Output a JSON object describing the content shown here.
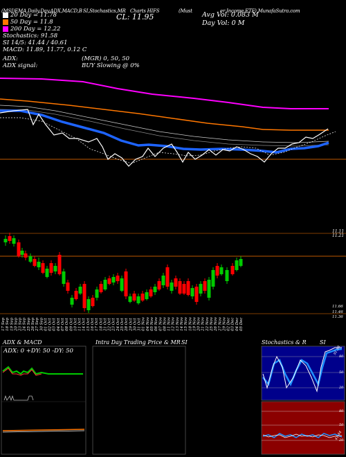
{
  "header": {
    "left": "(MSI)EMA,Daily,Day,ADX,MACD,B",
    "mid1": "SI,Stochastics,MR",
    "mid2": "Charts HIFS",
    "mid3": "(Must",
    "right": "er Income ETF) MunafaSutra.com",
    "cl_label": "CL: 11.95",
    "avg_vol": "Avg Vol: 0.083 M",
    "day_vol": "Day Vol: 0   M"
  },
  "legend": {
    "items": [
      {
        "label": "20  Day = 11.78",
        "color": "#ffffff"
      },
      {
        "label": "50  Day = 11.8",
        "color": "#ff7700"
      },
      {
        "label": "200  Day = 12.22",
        "color": "#ff00ff"
      }
    ],
    "stochastics": "Stochastics: 91.58",
    "si": "SI 14/5: 41.44 / 40.61",
    "macd": "MACD: 11.89, 11.77, 0.12  C"
  },
  "adx_block": {
    "adx_label": "ADX:",
    "adx_value": "(MGR) 0,  50,  50",
    "signal_label": "ADX  signal:",
    "signal_value": "BUY Slowing @ 0%"
  },
  "price_axis": {
    "top_a": "11.11",
    "top_b": "11.21",
    "bot_a": "11.66",
    "bot_b": "11.46",
    "bot_c": "11.36"
  },
  "dates": [
    "17 Sep",
    "18 Sep",
    "19 Sep",
    "20 Sep",
    "23 Sep",
    "24 Sep",
    "25 Sep",
    "26 Sep",
    "27 Sep",
    "30 Sep",
    "01 Oct",
    "02 Oct",
    "03 Oct",
    "04 Oct",
    "07 Oct",
    "08 Oct",
    "09 Oct",
    "10 Oct",
    "11 Oct",
    "14 Oct",
    "15 Oct",
    "16 Oct",
    "17 Oct",
    "18 Oct",
    "21 Oct",
    "22 Oct",
    "23 Oct",
    "24 Oct",
    "25 Oct",
    "28 Oct",
    "29 Oct",
    "30 Oct",
    "31 Oct",
    "01 Nov",
    "04 Nov",
    "05 Nov",
    "06 Nov",
    "07 Nov",
    "08 Nov",
    "11 Nov",
    "12 Nov",
    "13 Nov",
    "14 Nov",
    "15 Nov",
    "18 Nov",
    "19 Nov",
    "20 Nov",
    "21 Nov",
    "22 Nov",
    "25 Nov",
    "26 Nov",
    "27 Nov",
    "29 Nov",
    "02 Dec",
    "03 Dec",
    "04 Dec",
    "05 Dec"
  ],
  "panels": {
    "adx_title": "ADX  & MACD",
    "adx_values": "ADX: 0   +DY: 50  -DY: 50",
    "mr_title": "Intra  Day Trading Price  & MR",
    "si_title_a": "SI",
    "stoch_title": "Stochastics & R",
    "stoch_si": "SI",
    "stoch_ticks": [
      "80",
      "50",
      "20"
    ],
    "si_ticks": [
      "80",
      "50",
      "20"
    ],
    "stoch_note": "91.58",
    "si_note": "41.44"
  },
  "chart_data": {
    "type": "line",
    "title": "HIFS",
    "candles_note": "daily OHLC candles shown below moving averages",
    "series": [
      {
        "name": "20  Day",
        "color": "#ffffff"
      },
      {
        "name": "50  Day",
        "color": "#ff7700"
      },
      {
        "name": "200  Day",
        "color": "#ff00ff"
      }
    ],
    "ema20_last": 11.78,
    "ema50_last": 11.8,
    "ema200_last": 12.22,
    "close": 11.95,
    "stochastics": 91.58,
    "si": [
      41.44,
      40.61
    ],
    "macd": [
      11.89,
      11.77,
      0.12
    ]
  },
  "colors": {
    "bull": "#00cc00",
    "bear": "#ff0000",
    "pink": "#ff00ff",
    "orange": "#ff7700",
    "blue": "#1e64ff"
  }
}
